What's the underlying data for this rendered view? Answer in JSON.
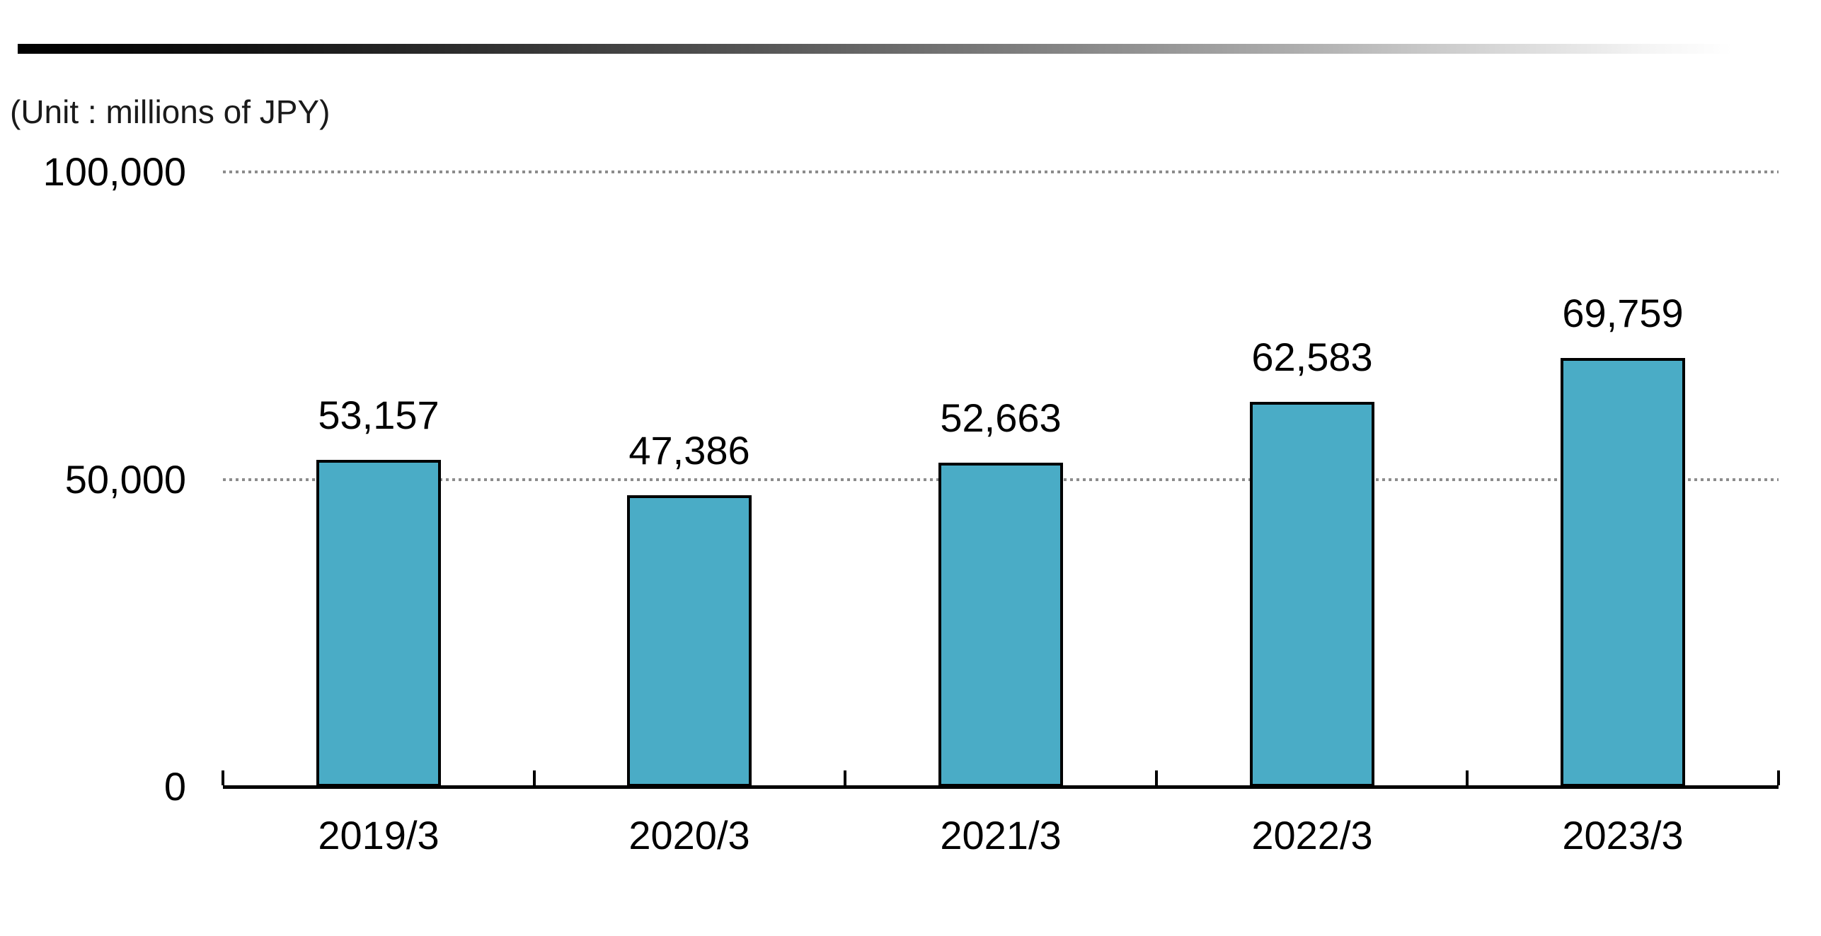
{
  "header": {
    "unit_label": "(Unit : millions of JPY)"
  },
  "colors": {
    "bar_fill": "#4AACC6",
    "bar_border": "#000000",
    "axis": "#000000",
    "gridline": "#8C8C8C",
    "text": "#000000",
    "top_rule_gradient_start": "#000000",
    "top_rule_gradient_end": "#FFFFFF"
  },
  "chart_data": {
    "type": "bar",
    "title": "",
    "unit_note": "(Unit : millions of JPY)",
    "categories": [
      "2019/3",
      "2020/3",
      "2021/3",
      "2022/3",
      "2023/3"
    ],
    "values": [
      53157,
      47386,
      52663,
      62583,
      69759
    ],
    "value_labels": [
      "53,157",
      "47,386",
      "52,663",
      "62,583",
      "69,759"
    ],
    "xlabel": "",
    "ylabel": "",
    "ylim": [
      0,
      100000
    ],
    "yticks": [
      0,
      50000,
      100000
    ],
    "ytick_labels": [
      "0",
      "50,000",
      "100,000"
    ],
    "grid": "horizontal dotted lines at 50,000 and 100,000",
    "legend": "none",
    "bar_orientation": "vertical"
  }
}
